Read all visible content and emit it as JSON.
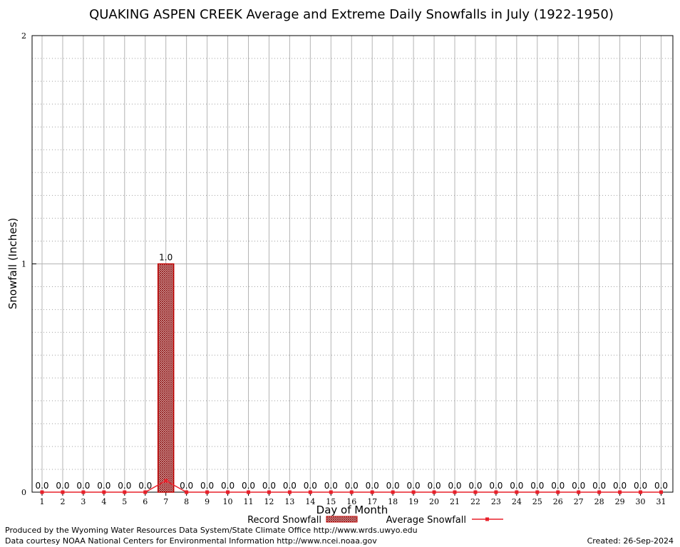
{
  "chart_data": {
    "type": "bar",
    "title": "QUAKING ASPEN CREEK Average and Extreme Daily Snowfalls in July (1922-1950)",
    "xlabel": "Day of Month",
    "ylabel": "Snowfall (Inches)",
    "ylim": [
      0,
      2
    ],
    "yticks": [
      "0",
      "1",
      "2"
    ],
    "grid": true,
    "legend_position": "bottom",
    "categories": [
      "1",
      "2",
      "3",
      "4",
      "5",
      "6",
      "7",
      "8",
      "9",
      "10",
      "11",
      "12",
      "13",
      "14",
      "15",
      "16",
      "17",
      "18",
      "19",
      "20",
      "21",
      "22",
      "23",
      "24",
      "25",
      "26",
      "27",
      "28",
      "29",
      "30",
      "31"
    ],
    "series": [
      {
        "name": "Record Snowfall",
        "kind": "bar",
        "color": "#c00000",
        "values": [
          0,
          0,
          0,
          0,
          0,
          0,
          1.0,
          0,
          0,
          0,
          0,
          0,
          0,
          0,
          0,
          0,
          0,
          0,
          0,
          0,
          0,
          0,
          0,
          0,
          0,
          0,
          0,
          0,
          0,
          0,
          0
        ],
        "labels": [
          "0.0",
          "0.0",
          "0.0",
          "0.0",
          "0.0",
          "0.0",
          "1.0",
          "0.0",
          "0.0",
          "0.0",
          "0.0",
          "0.0",
          "0.0",
          "0.0",
          "0.0",
          "0.0",
          "0.0",
          "0.0",
          "0.0",
          "0.0",
          "0.0",
          "0.0",
          "0.0",
          "0.0",
          "0.0",
          "0.0",
          "0.0",
          "0.0",
          "0.0",
          "0.0",
          "0.0"
        ]
      },
      {
        "name": "Average Snowfall",
        "kind": "line",
        "color": "#e8202a",
        "values": [
          0,
          0,
          0,
          0,
          0,
          0,
          0.05,
          0,
          0,
          0,
          0,
          0,
          0,
          0,
          0,
          0,
          0,
          0,
          0,
          0,
          0,
          0,
          0,
          0,
          0,
          0,
          0,
          0,
          0,
          0,
          0
        ]
      }
    ]
  },
  "footer": {
    "produced_by": "Produced by the Wyoming Water Resources Data System/State Climate Office http://www.wrds.uwyo.edu",
    "courtesy": "Data courtesy NOAA National Centers for Environmental Information http://www.ncei.noaa.gov",
    "created": "Created: 26-Sep-2024"
  }
}
